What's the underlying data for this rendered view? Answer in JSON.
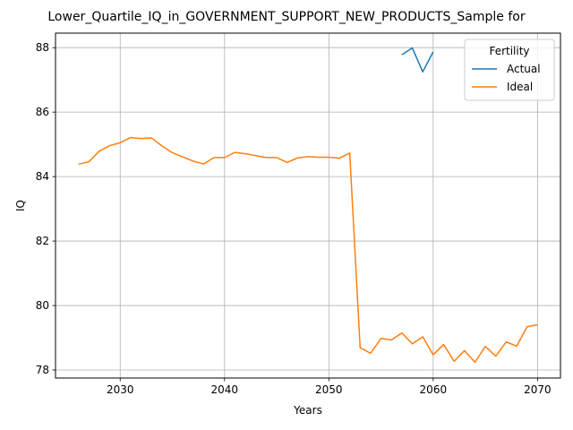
{
  "chart_data": {
    "type": "line",
    "title": "Lower_Quartile_IQ_in_GOVERNMENT_SUPPORT_NEW_PRODUCTS_Sample for",
    "xlabel": "Years",
    "ylabel": "IQ",
    "xlim": [
      2023.8,
      2072.2
    ],
    "ylim": [
      77.75,
      88.45
    ],
    "x_ticks": [
      2030,
      2040,
      2050,
      2060,
      2070
    ],
    "y_ticks": [
      78,
      80,
      82,
      84,
      86,
      88
    ],
    "grid": true,
    "legend": {
      "title": "Fertility",
      "placement": "top-right"
    },
    "series": [
      {
        "name": "Actual",
        "color": "#1f77b4",
        "x": [
          2057,
          2058,
          2059,
          2060
        ],
        "y": [
          87.78,
          87.99,
          87.25,
          87.87
        ]
      },
      {
        "name": "Ideal",
        "color": "#ff7f0e",
        "x": [
          2026,
          2027,
          2028,
          2029,
          2030,
          2031,
          2032,
          2033,
          2034,
          2035,
          2036,
          2037,
          2038,
          2039,
          2040,
          2041,
          2042,
          2043,
          2044,
          2045,
          2046,
          2047,
          2048,
          2049,
          2050,
          2051,
          2052,
          2053,
          2054,
          2055,
          2056,
          2057,
          2058,
          2059,
          2060,
          2061,
          2062,
          2063,
          2064,
          2065,
          2066,
          2067,
          2068,
          2069,
          2070
        ],
        "y": [
          84.38,
          84.46,
          84.79,
          84.96,
          85.05,
          85.21,
          85.18,
          85.2,
          84.95,
          84.74,
          84.61,
          84.48,
          84.39,
          84.59,
          84.59,
          84.75,
          84.71,
          84.65,
          84.59,
          84.59,
          84.44,
          84.58,
          84.62,
          84.6,
          84.6,
          84.57,
          84.73,
          78.69,
          78.52,
          78.98,
          78.93,
          79.15,
          78.81,
          79.03,
          78.47,
          78.79,
          78.27,
          78.6,
          78.24,
          78.73,
          78.43,
          78.87,
          78.74,
          79.34,
          79.4
        ]
      }
    ]
  }
}
